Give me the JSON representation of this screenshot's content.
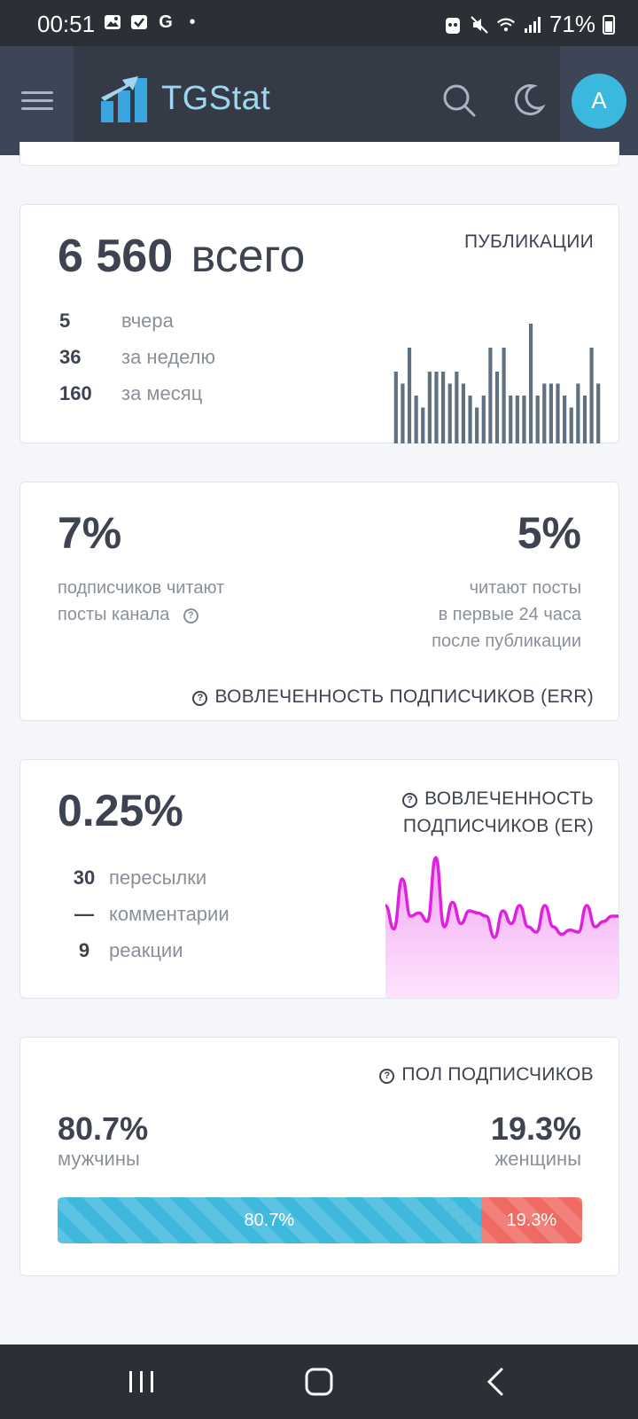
{
  "status_bar": {
    "time": "00:51",
    "battery": "71%",
    "left_icons": [
      "image-icon",
      "checkbox-icon",
      "google-icon",
      "dot-icon"
    ],
    "right_icons": [
      "vpn-icon",
      "mute-icon",
      "wifi-icon",
      "signal-icon",
      "battery-icon"
    ]
  },
  "header": {
    "brand": "TGStat",
    "avatar_letter": "A",
    "brand_color": "#9fd6ee",
    "avatar_color": "#3bb8dd"
  },
  "publications": {
    "total_num": "6 560",
    "total_word": "всего",
    "label": "ПУБЛИКАЦИИ",
    "rows": [
      {
        "value": "5",
        "label": "вчера"
      },
      {
        "value": "36",
        "label": "за неделю"
      },
      {
        "value": "160",
        "label": "за месяц"
      }
    ]
  },
  "err": {
    "left_value": "7%",
    "left_desc_line1": "подписчиков читают",
    "left_desc_line2": "посты канала",
    "right_value": "5%",
    "right_desc_line1": "читают посты",
    "right_desc_line2": "в первые 24 часа",
    "right_desc_line3": "после публикации",
    "label": "ВОВЛЕЧЕННОСТЬ ПОДПИСЧИКОВ (ERR)"
  },
  "er": {
    "value": "0.25%",
    "label_line1": "ВОВЛЕЧЕННОСТЬ",
    "label_line2": "ПОДПИСЧИКОВ (ER)",
    "rows": [
      {
        "value": "30",
        "label": "пересылки"
      },
      {
        "value": "—",
        "label": "комментарии"
      },
      {
        "value": "9",
        "label": "реакции"
      }
    ]
  },
  "gender": {
    "label": "ПОЛ ПОДПИСЧИКОВ",
    "male_value": "80.7%",
    "male_label": "мужчины",
    "female_value": "19.3%",
    "female_label": "женщины",
    "male_fraction": 0.807,
    "male_color": "#3fb8dd",
    "female_color": "#f06a64"
  },
  "chart_data": [
    {
      "type": "bar",
      "values": [
        6,
        5,
        8,
        4,
        3,
        6,
        6,
        6,
        5,
        6,
        5,
        4,
        3,
        4,
        8,
        6,
        8,
        4,
        4,
        4,
        10,
        4,
        5,
        5,
        5,
        4,
        3,
        5,
        4,
        8,
        5
      ],
      "color": "#5f7080"
    },
    {
      "type": "area",
      "values": [
        0.55,
        0.33,
        0.8,
        0.45,
        0.48,
        0.4,
        1.0,
        0.35,
        0.58,
        0.38,
        0.5,
        0.48,
        0.45,
        0.25,
        0.5,
        0.38,
        0.55,
        0.35,
        0.3,
        0.55,
        0.35,
        0.28,
        0.32,
        0.3,
        0.55,
        0.35,
        0.4,
        0.45,
        0.45
      ],
      "color": "#e020e0"
    }
  ]
}
